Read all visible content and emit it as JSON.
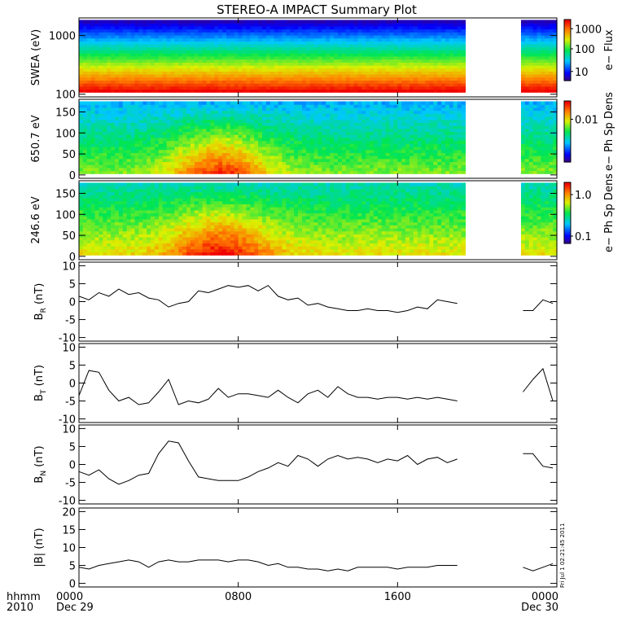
{
  "title": "STEREO-A IMPACT Summary Plot",
  "time_axis": {
    "label_top": "hhmm",
    "label_bottom": "2010",
    "ticks": [
      {
        "hours": 0,
        "label": "0000",
        "date": "Dec 29"
      },
      {
        "hours": 8,
        "label": "0800",
        "date": ""
      },
      {
        "hours": 16,
        "label": "1600",
        "date": ""
      },
      {
        "hours": 24,
        "label": "0000",
        "date": "Dec 30"
      }
    ]
  },
  "timestamp": "Fri Jul 1 02:21:45 2011",
  "gap": {
    "start_hours": 19.3,
    "end_hours": 22.2
  },
  "colors": {
    "axis": "#000000",
    "line": "#000000",
    "background": "#ffffff"
  },
  "spectrograms": [
    {
      "ylabel": "SWEA (eV)",
      "yscale": "log",
      "ylim": [
        90,
        2000
      ],
      "yticks": [
        100,
        1000
      ],
      "ytick_labels": [
        "100",
        "1000"
      ],
      "colorbar_label": "e− Flux",
      "colorbar_ticks": [
        10,
        100,
        1000
      ],
      "colorbar_tick_labels": [
        "10",
        "100",
        "1000"
      ]
    },
    {
      "ylabel": "650.7 eV",
      "yscale": "linear",
      "ylim": [
        -8,
        180
      ],
      "yticks": [
        0,
        50,
        100,
        150
      ],
      "ytick_labels": [
        "0",
        "50",
        "100",
        "150"
      ],
      "colorbar_label": "e− Ph Sp Dens",
      "colorbar_ticks": [
        0.01
      ],
      "colorbar_tick_labels": [
        "0.01"
      ]
    },
    {
      "ylabel": "246.6 eV",
      "yscale": "linear",
      "ylim": [
        -8,
        180
      ],
      "yticks": [
        0,
        50,
        100,
        150
      ],
      "ytick_labels": [
        "0",
        "50",
        "100",
        "150"
      ],
      "colorbar_label": "e− Ph Sp Dens",
      "colorbar_ticks": [
        0.1,
        1.0
      ],
      "colorbar_tick_labels": [
        "0.1",
        "1.0"
      ]
    }
  ],
  "chart_data": [
    {
      "type": "line",
      "ylabel": "B",
      "ylabel_sub": "R",
      "ylabel_unit": " (nT)",
      "ylim": [
        -11,
        11
      ],
      "yticks": [
        -10,
        -5,
        0,
        5,
        10
      ],
      "x_hours": [
        0.0,
        0.5,
        1.0,
        1.5,
        2.0,
        2.5,
        3.0,
        3.5,
        4.0,
        4.5,
        5.0,
        5.5,
        6.0,
        6.5,
        7.0,
        7.5,
        8.0,
        8.5,
        9.0,
        9.5,
        10.0,
        10.5,
        11.0,
        11.5,
        12.0,
        12.5,
        13.0,
        13.5,
        14.0,
        14.5,
        15.0,
        15.5,
        16.0,
        16.5,
        17.0,
        17.5,
        18.0,
        18.5,
        19.0,
        22.3,
        22.8,
        23.3,
        23.8
      ],
      "values": [
        1.5,
        0.5,
        2.5,
        1.5,
        3.5,
        2.0,
        2.5,
        1.0,
        0.5,
        -1.5,
        -0.5,
        0.0,
        3.0,
        2.5,
        3.5,
        4.5,
        4.0,
        4.5,
        3.0,
        4.5,
        1.5,
        0.5,
        1.0,
        -1.0,
        -0.5,
        -1.5,
        -2.0,
        -2.5,
        -2.5,
        -2.0,
        -2.5,
        -2.5,
        -3.0,
        -2.5,
        -1.5,
        -2.0,
        0.5,
        0.0,
        -0.5,
        -2.5,
        -2.5,
        0.5,
        -0.5
      ]
    },
    {
      "type": "line",
      "ylabel": "B",
      "ylabel_sub": "T",
      "ylabel_unit": " (nT)",
      "ylim": [
        -11,
        11
      ],
      "yticks": [
        -10,
        -5,
        0,
        5,
        10
      ],
      "x_hours": [
        0.0,
        0.5,
        1.0,
        1.5,
        2.0,
        2.5,
        3.0,
        3.5,
        4.0,
        4.5,
        5.0,
        5.5,
        6.0,
        6.5,
        7.0,
        7.5,
        8.0,
        8.5,
        9.0,
        9.5,
        10.0,
        10.5,
        11.0,
        11.5,
        12.0,
        12.5,
        13.0,
        13.5,
        14.0,
        14.5,
        15.0,
        15.5,
        16.0,
        16.5,
        17.0,
        17.5,
        18.0,
        18.5,
        19.0,
        22.3,
        22.8,
        23.3,
        23.8
      ],
      "values": [
        -3.5,
        3.5,
        3.0,
        -2.0,
        -5.0,
        -4.0,
        -6.0,
        -5.5,
        -2.5,
        1.0,
        -6.0,
        -5.0,
        -5.5,
        -4.5,
        -1.5,
        -4.0,
        -3.0,
        -3.0,
        -3.5,
        -4.0,
        -2.0,
        -4.0,
        -5.5,
        -3.0,
        -2.0,
        -4.0,
        -1.0,
        -3.0,
        -4.0,
        -4.0,
        -4.5,
        -4.0,
        -4.0,
        -4.5,
        -4.0,
        -4.5,
        -4.0,
        -4.5,
        -5.0,
        -2.5,
        1.0,
        4.0,
        -5.0
      ]
    },
    {
      "type": "line",
      "ylabel": "B",
      "ylabel_sub": "N",
      "ylabel_unit": " (nT)",
      "ylim": [
        -11,
        11
      ],
      "yticks": [
        -10,
        -5,
        0,
        5,
        10
      ],
      "x_hours": [
        0.0,
        0.5,
        1.0,
        1.5,
        2.0,
        2.5,
        3.0,
        3.5,
        4.0,
        4.5,
        5.0,
        5.5,
        6.0,
        6.5,
        7.0,
        7.5,
        8.0,
        8.5,
        9.0,
        9.5,
        10.0,
        10.5,
        11.0,
        11.5,
        12.0,
        12.5,
        13.0,
        13.5,
        14.0,
        14.5,
        15.0,
        15.5,
        16.0,
        16.5,
        17.0,
        17.5,
        18.0,
        18.5,
        19.0,
        22.3,
        22.8,
        23.3,
        23.8
      ],
      "values": [
        -2.0,
        -3.0,
        -1.5,
        -4.0,
        -5.5,
        -4.5,
        -3.0,
        -2.5,
        3.0,
        6.5,
        6.0,
        1.0,
        -3.5,
        -4.0,
        -4.5,
        -4.5,
        -4.5,
        -3.5,
        -2.0,
        -1.0,
        0.5,
        -0.5,
        2.5,
        1.5,
        -0.5,
        1.5,
        2.5,
        1.5,
        2.0,
        1.5,
        0.5,
        1.5,
        1.0,
        2.5,
        0.0,
        1.5,
        2.0,
        0.5,
        1.5,
        3.0,
        3.0,
        -0.5,
        -1.0
      ]
    },
    {
      "type": "line",
      "ylabel": "|B|",
      "ylabel_sub": "",
      "ylabel_unit": " (nT)",
      "ylim": [
        -1,
        21
      ],
      "yticks": [
        0,
        5,
        10,
        15,
        20
      ],
      "x_hours": [
        0.0,
        0.5,
        1.0,
        1.5,
        2.0,
        2.5,
        3.0,
        3.5,
        4.0,
        4.5,
        5.0,
        5.5,
        6.0,
        6.5,
        7.0,
        7.5,
        8.0,
        8.5,
        9.0,
        9.5,
        10.0,
        10.5,
        11.0,
        11.5,
        12.0,
        12.5,
        13.0,
        13.5,
        14.0,
        14.5,
        15.0,
        15.5,
        16.0,
        16.5,
        17.0,
        17.5,
        18.0,
        18.5,
        19.0,
        22.3,
        22.8,
        23.3,
        23.8
      ],
      "values": [
        4.5,
        4.0,
        5.0,
        5.5,
        6.0,
        6.5,
        6.0,
        4.5,
        6.0,
        6.5,
        6.0,
        6.0,
        6.5,
        6.5,
        6.5,
        6.0,
        6.5,
        6.5,
        6.0,
        5.0,
        5.5,
        4.5,
        4.5,
        4.0,
        4.0,
        3.5,
        4.0,
        3.5,
        4.5,
        4.5,
        4.5,
        4.5,
        4.0,
        4.5,
        4.5,
        4.5,
        5.0,
        5.0,
        5.0,
        4.5,
        3.5,
        4.5,
        5.5
      ]
    }
  ]
}
